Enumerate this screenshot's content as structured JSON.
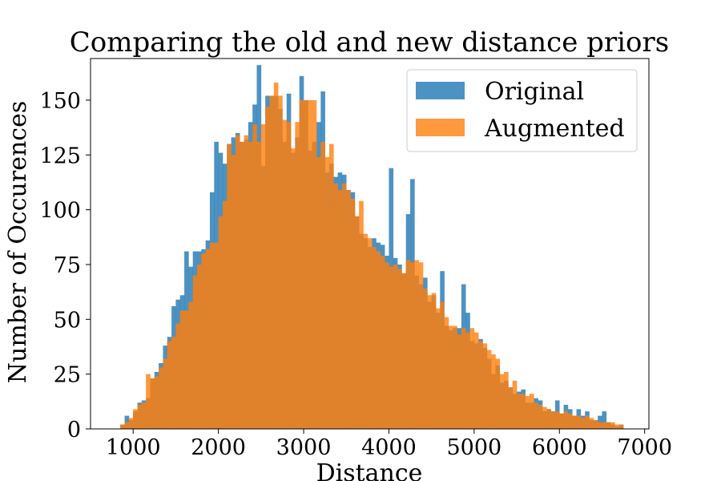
{
  "chart_data": {
    "type": "bar",
    "subtype": "overlaid-histogram",
    "title": "Comparing the old and new distance priors",
    "xlabel": "Distance",
    "ylabel": "Number of Occurences",
    "xlim": [
      500,
      7050
    ],
    "ylim": [
      0,
      169
    ],
    "xticks": [
      1000,
      2000,
      3000,
      4000,
      5000,
      6000,
      7000
    ],
    "yticks": [
      0,
      25,
      50,
      75,
      100,
      125,
      150
    ],
    "grid": false,
    "legend_position": "top-right",
    "bins": {
      "start": 850,
      "width": 50,
      "count": 118
    },
    "series": [
      {
        "name": "Original",
        "color": "#1f77b4",
        "values": [
          2,
          6,
          4,
          8,
          12,
          13,
          14,
          23,
          26,
          30,
          38,
          42,
          56,
          59,
          61,
          81,
          74,
          81,
          81,
          82,
          86,
          108,
          131,
          126,
          121,
          130,
          133,
          135,
          119,
          132,
          140,
          148,
          166,
          120,
          152,
          142,
          152,
          146,
          131,
          153,
          126,
          133,
          161,
          149,
          127,
          128,
          140,
          154,
          117,
          121,
          115,
          117,
          116,
          109,
          108,
          97,
          89,
          87,
          83,
          87,
          85,
          84,
          79,
          119,
          78,
          75,
          71,
          98,
          114,
          70,
          66,
          69,
          58,
          61,
          53,
          72,
          47,
          45,
          46,
          46,
          66,
          53,
          40,
          39,
          41,
          37,
          32,
          25,
          29,
          21,
          19,
          19,
          16,
          17,
          18,
          12,
          12,
          14,
          13,
          8,
          9,
          8,
          13,
          7,
          11,
          9,
          6,
          9,
          6,
          8,
          4,
          4,
          6,
          8,
          3,
          2,
          1,
          2
        ],
        "overlap_values": [
          2,
          3,
          4,
          8,
          11,
          12,
          13,
          23,
          24,
          28,
          32,
          40,
          42,
          48,
          54,
          54,
          58,
          70,
          75,
          80,
          82,
          85,
          83,
          97,
          104,
          130,
          125,
          134,
          131,
          124,
          130,
          139,
          131,
          115,
          147,
          152,
          141,
          134,
          128,
          140,
          122,
          128,
          150,
          150,
          121,
          131,
          124,
          130,
          100,
          106,
          112,
          109,
          105,
          97,
          104,
          89,
          87,
          83,
          81,
          79,
          76,
          74,
          75,
          73,
          71,
          72,
          70,
          77,
          76,
          64,
          61,
          62,
          55,
          58,
          51,
          47,
          47,
          43,
          45,
          43,
          46,
          44,
          40,
          39,
          36,
          34,
          32,
          25,
          26,
          19,
          22,
          16,
          15,
          15,
          16,
          12,
          11,
          10,
          9,
          8,
          8,
          7,
          8,
          7,
          6,
          6,
          5,
          6,
          5,
          4,
          3,
          3,
          3,
          3,
          2,
          2,
          1,
          1
        ]
      },
      {
        "name": "Augmented",
        "color": "#ff7f0e",
        "values": [
          2,
          3,
          5,
          9,
          11,
          12,
          25,
          23,
          24,
          20,
          30,
          40,
          42,
          48,
          52,
          54,
          58,
          62,
          41,
          79,
          80,
          82,
          85,
          83,
          97,
          108,
          104,
          130,
          125,
          134,
          131,
          124,
          130,
          139,
          131,
          115,
          158,
          152,
          141,
          134,
          128,
          140,
          122,
          128,
          150,
          150,
          121,
          131,
          124,
          130,
          100,
          106,
          112,
          109,
          105,
          97,
          104,
          89,
          87,
          83,
          81,
          79,
          76,
          74,
          75,
          73,
          71,
          72,
          70,
          77,
          76,
          64,
          61,
          62,
          55,
          58,
          51,
          47,
          47,
          43,
          45,
          43,
          46,
          44,
          40,
          39,
          36,
          34,
          32,
          25,
          26,
          19,
          22,
          16,
          15,
          15,
          16,
          12,
          11,
          10,
          9,
          8,
          8,
          7,
          8,
          7,
          6,
          6,
          5,
          6,
          5,
          4,
          3,
          3,
          3,
          3,
          2,
          2
        ]
      }
    ]
  }
}
